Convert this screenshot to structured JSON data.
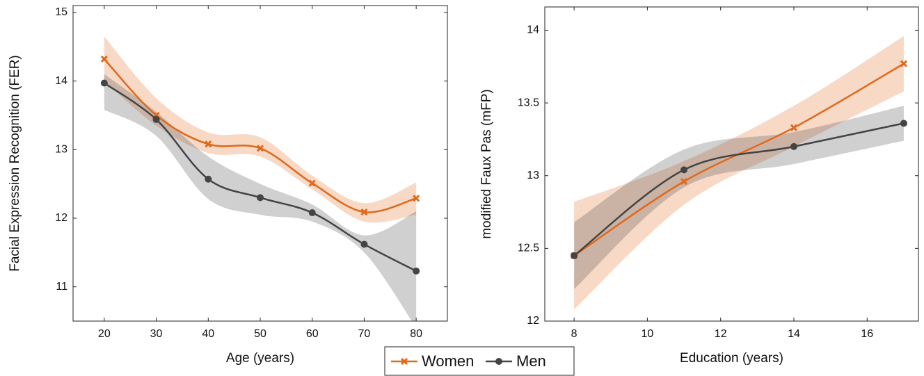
{
  "chart_data": [
    {
      "type": "line",
      "xlabel": "Age (years)",
      "ylabel": "Facial Expression Recognition (FER)",
      "x": [
        20,
        30,
        40,
        50,
        60,
        70,
        80
      ],
      "xlim": [
        14,
        86
      ],
      "xticks": [
        20,
        30,
        40,
        50,
        60,
        70,
        80
      ],
      "ylim": [
        10.5,
        15.1
      ],
      "yticks": [
        11,
        12,
        13,
        14,
        15
      ],
      "series": [
        {
          "name": "Women",
          "color": "#e0691a",
          "marker": "x",
          "values": [
            14.32,
            13.5,
            13.08,
            13.02,
            12.51,
            12.09,
            12.29
          ],
          "lower": [
            14.0,
            13.35,
            12.95,
            12.9,
            12.42,
            11.95,
            12.05
          ],
          "upper": [
            14.65,
            13.75,
            13.25,
            13.18,
            12.62,
            12.22,
            12.52
          ]
        },
        {
          "name": "Men",
          "color": "#444444",
          "marker": "circle",
          "values": [
            13.97,
            13.44,
            12.57,
            12.3,
            12.08,
            11.62,
            11.23
          ],
          "lower": [
            13.58,
            13.2,
            12.28,
            12.05,
            11.95,
            11.5,
            10.4
          ],
          "upper": [
            14.1,
            13.55,
            12.9,
            12.5,
            12.2,
            11.75,
            12.1
          ]
        }
      ]
    },
    {
      "type": "line",
      "xlabel": "Education (years)",
      "ylabel": "modified Faux Pas (mFP)",
      "x": [
        8,
        11,
        14,
        17
      ],
      "xlim": [
        7.2,
        17.4
      ],
      "xticks": [
        8,
        10,
        12,
        14,
        16
      ],
      "ylim": [
        12,
        14.16
      ],
      "yticks": [
        12,
        12.5,
        13,
        13.5,
        14
      ],
      "series": [
        {
          "name": "Women",
          "color": "#e0691a",
          "marker": "x",
          "values": [
            12.45,
            12.96,
            13.33,
            13.77
          ],
          "lower": [
            12.08,
            12.8,
            13.2,
            13.58
          ],
          "upper": [
            12.82,
            13.1,
            13.48,
            13.96
          ]
        },
        {
          "name": "Men",
          "color": "#444444",
          "marker": "circle",
          "values": [
            12.45,
            13.04,
            13.2,
            13.36
          ],
          "lower": [
            12.22,
            12.92,
            13.08,
            13.24
          ],
          "upper": [
            12.68,
            13.18,
            13.3,
            13.48
          ]
        }
      ]
    }
  ]
}
